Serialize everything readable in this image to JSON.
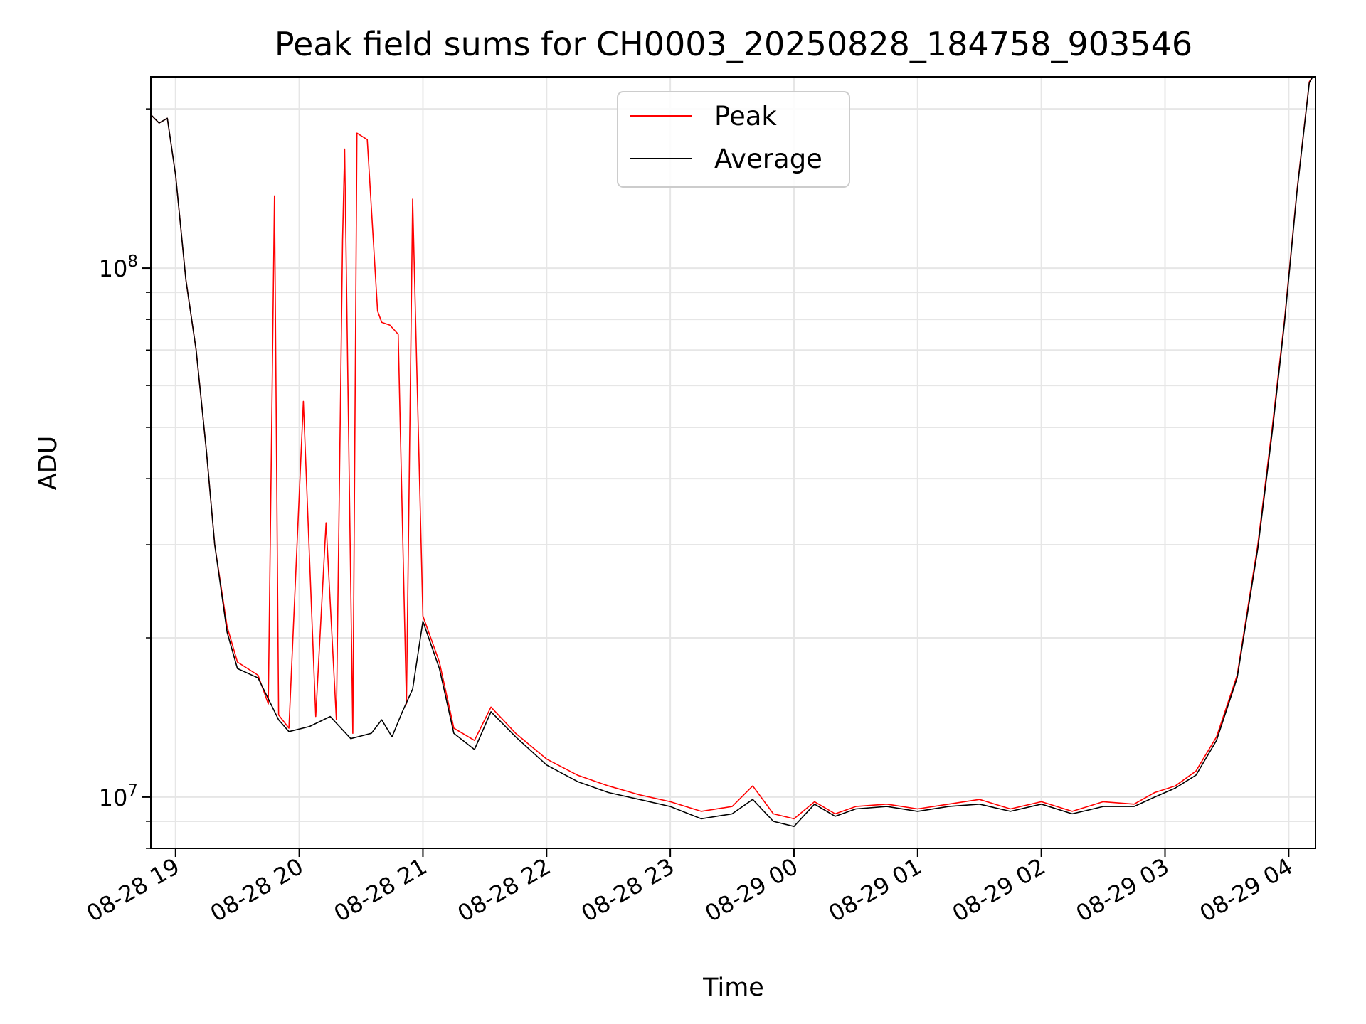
{
  "chart_data": {
    "type": "line",
    "title": "Peak field sums for CH0003_20250828_184758_903546",
    "xlabel": "Time",
    "ylabel": "ADU",
    "yscale": "log",
    "xlim": [
      "2025-08-28 18:48",
      "2025-08-29 04:13"
    ],
    "ylim": [
      8000000,
      230000000
    ],
    "grid": true,
    "legend_position": "top-center",
    "x_ticks": [
      "08-28 19",
      "08-28 20",
      "08-28 21",
      "08-28 22",
      "08-28 23",
      "08-29 00",
      "08-29 01",
      "08-29 02",
      "08-29 03",
      "08-29 04"
    ],
    "y_ticks": [
      {
        "value": 10000000,
        "base": "10",
        "exp": "7"
      },
      {
        "value": 100000000,
        "base": "10",
        "exp": "8"
      }
    ],
    "series": [
      {
        "name": "Peak",
        "color": "#ff0000",
        "points": [
          [
            "2025-08-28 18:48",
            195000000
          ],
          [
            "2025-08-28 18:52",
            188000000
          ],
          [
            "2025-08-28 18:56",
            192000000
          ],
          [
            "2025-08-28 19:00",
            150000000
          ],
          [
            "2025-08-28 19:05",
            95000000
          ],
          [
            "2025-08-28 19:10",
            70000000
          ],
          [
            "2025-08-28 19:15",
            45000000
          ],
          [
            "2025-08-28 19:19",
            30000000
          ],
          [
            "2025-08-28 19:25",
            21000000
          ],
          [
            "2025-08-28 19:30",
            18000000
          ],
          [
            "2025-08-28 19:40",
            17000000
          ],
          [
            "2025-08-28 19:45",
            15000000
          ],
          [
            "2025-08-28 19:48",
            137000000
          ],
          [
            "2025-08-28 19:50",
            14300000
          ],
          [
            "2025-08-28 19:55",
            13500000
          ],
          [
            "2025-08-28 20:02",
            56000000
          ],
          [
            "2025-08-28 20:08",
            14200000
          ],
          [
            "2025-08-28 20:13",
            33000000
          ],
          [
            "2025-08-28 20:18",
            14000000
          ],
          [
            "2025-08-28 20:21",
            113000000
          ],
          [
            "2025-08-28 20:22",
            168000000
          ],
          [
            "2025-08-28 20:26",
            13200000
          ],
          [
            "2025-08-28 20:28",
            180000000
          ],
          [
            "2025-08-28 20:33",
            175000000
          ],
          [
            "2025-08-28 20:38",
            83000000
          ],
          [
            "2025-08-28 20:40",
            79000000
          ],
          [
            "2025-08-28 20:44",
            78000000
          ],
          [
            "2025-08-28 20:48",
            75000000
          ],
          [
            "2025-08-28 20:52",
            15000000
          ],
          [
            "2025-08-28 20:55",
            135000000
          ],
          [
            "2025-08-28 21:00",
            22000000
          ],
          [
            "2025-08-28 21:08",
            18000000
          ],
          [
            "2025-08-28 21:15",
            13500000
          ],
          [
            "2025-08-28 21:25",
            12800000
          ],
          [
            "2025-08-28 21:33",
            14800000
          ],
          [
            "2025-08-28 21:45",
            13200000
          ],
          [
            "2025-08-28 22:00",
            11800000
          ],
          [
            "2025-08-28 22:15",
            11000000
          ],
          [
            "2025-08-28 22:30",
            10500000
          ],
          [
            "2025-08-28 22:45",
            10100000
          ],
          [
            "2025-08-28 23:00",
            9800000
          ],
          [
            "2025-08-28 23:15",
            9400000
          ],
          [
            "2025-08-28 23:30",
            9600000
          ],
          [
            "2025-08-28 23:40",
            10500000
          ],
          [
            "2025-08-28 23:50",
            9300000
          ],
          [
            "2025-08-29 00:00",
            9100000
          ],
          [
            "2025-08-29 00:10",
            9800000
          ],
          [
            "2025-08-29 00:20",
            9300000
          ],
          [
            "2025-08-29 00:30",
            9600000
          ],
          [
            "2025-08-29 00:45",
            9700000
          ],
          [
            "2025-08-29 01:00",
            9500000
          ],
          [
            "2025-08-29 01:15",
            9700000
          ],
          [
            "2025-08-29 01:30",
            9900000
          ],
          [
            "2025-08-29 01:45",
            9500000
          ],
          [
            "2025-08-29 02:00",
            9800000
          ],
          [
            "2025-08-29 02:15",
            9400000
          ],
          [
            "2025-08-29 02:30",
            9800000
          ],
          [
            "2025-08-29 02:45",
            9700000
          ],
          [
            "2025-08-29 02:55",
            10200000
          ],
          [
            "2025-08-29 03:05",
            10500000
          ],
          [
            "2025-08-29 03:15",
            11200000
          ],
          [
            "2025-08-29 03:25",
            13000000
          ],
          [
            "2025-08-29 03:35",
            17000000
          ],
          [
            "2025-08-29 03:45",
            30000000
          ],
          [
            "2025-08-29 03:52",
            50000000
          ],
          [
            "2025-08-29 03:58",
            80000000
          ],
          [
            "2025-08-29 04:04",
            140000000
          ],
          [
            "2025-08-29 04:10",
            225000000
          ],
          [
            "2025-08-29 04:13",
            235000000
          ]
        ]
      },
      {
        "name": "Average",
        "color": "#000000",
        "points": [
          [
            "2025-08-28 18:48",
            195000000
          ],
          [
            "2025-08-28 18:52",
            188000000
          ],
          [
            "2025-08-28 18:56",
            192000000
          ],
          [
            "2025-08-28 19:00",
            150000000
          ],
          [
            "2025-08-28 19:05",
            95000000
          ],
          [
            "2025-08-28 19:10",
            70000000
          ],
          [
            "2025-08-28 19:15",
            45000000
          ],
          [
            "2025-08-28 19:19",
            30000000
          ],
          [
            "2025-08-28 19:25",
            20500000
          ],
          [
            "2025-08-28 19:30",
            17500000
          ],
          [
            "2025-08-28 19:40",
            16800000
          ],
          [
            "2025-08-28 19:50",
            14000000
          ],
          [
            "2025-08-28 19:55",
            13300000
          ],
          [
            "2025-08-28 20:05",
            13600000
          ],
          [
            "2025-08-28 20:15",
            14200000
          ],
          [
            "2025-08-28 20:25",
            12900000
          ],
          [
            "2025-08-28 20:35",
            13200000
          ],
          [
            "2025-08-28 20:40",
            14000000
          ],
          [
            "2025-08-28 20:45",
            13000000
          ],
          [
            "2025-08-28 20:50",
            14500000
          ],
          [
            "2025-08-28 20:55",
            16000000
          ],
          [
            "2025-08-28 21:00",
            21500000
          ],
          [
            "2025-08-28 21:08",
            17500000
          ],
          [
            "2025-08-28 21:15",
            13200000
          ],
          [
            "2025-08-28 21:25",
            12300000
          ],
          [
            "2025-08-28 21:33",
            14500000
          ],
          [
            "2025-08-28 21:45",
            13000000
          ],
          [
            "2025-08-28 22:00",
            11500000
          ],
          [
            "2025-08-28 22:15",
            10700000
          ],
          [
            "2025-08-28 22:30",
            10200000
          ],
          [
            "2025-08-28 22:45",
            9900000
          ],
          [
            "2025-08-28 23:00",
            9600000
          ],
          [
            "2025-08-28 23:15",
            9100000
          ],
          [
            "2025-08-28 23:30",
            9300000
          ],
          [
            "2025-08-28 23:40",
            9900000
          ],
          [
            "2025-08-28 23:50",
            9000000
          ],
          [
            "2025-08-29 00:00",
            8800000
          ],
          [
            "2025-08-29 00:10",
            9700000
          ],
          [
            "2025-08-29 00:20",
            9200000
          ],
          [
            "2025-08-29 00:30",
            9500000
          ],
          [
            "2025-08-29 00:45",
            9600000
          ],
          [
            "2025-08-29 01:00",
            9400000
          ],
          [
            "2025-08-29 01:15",
            9600000
          ],
          [
            "2025-08-29 01:30",
            9700000
          ],
          [
            "2025-08-29 01:45",
            9400000
          ],
          [
            "2025-08-29 02:00",
            9700000
          ],
          [
            "2025-08-29 02:15",
            9300000
          ],
          [
            "2025-08-29 02:30",
            9600000
          ],
          [
            "2025-08-29 02:45",
            9600000
          ],
          [
            "2025-08-29 02:55",
            10000000
          ],
          [
            "2025-08-29 03:05",
            10400000
          ],
          [
            "2025-08-29 03:15",
            11000000
          ],
          [
            "2025-08-29 03:25",
            12800000
          ],
          [
            "2025-08-29 03:35",
            16800000
          ],
          [
            "2025-08-29 03:45",
            29500000
          ],
          [
            "2025-08-29 03:52",
            49000000
          ],
          [
            "2025-08-29 03:58",
            79000000
          ],
          [
            "2025-08-29 04:04",
            139000000
          ],
          [
            "2025-08-29 04:10",
            224000000
          ],
          [
            "2025-08-29 04:13",
            235000000
          ]
        ]
      }
    ]
  }
}
